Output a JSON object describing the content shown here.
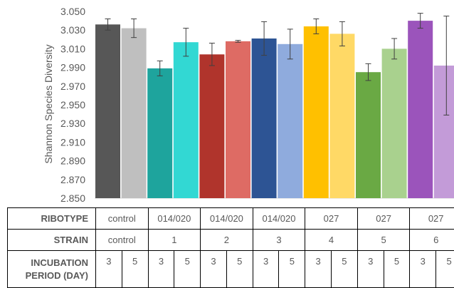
{
  "chart_data": {
    "type": "bar",
    "ylabel": "Shannon Species Diversity",
    "ylim": [
      2.85,
      3.05
    ],
    "yticks": [
      "3.050",
      "3.030",
      "3.010",
      "2.990",
      "2.970",
      "2.950",
      "2.930",
      "2.910",
      "2.890",
      "2.870",
      "2.850"
    ],
    "yticks_values": [
      3.05,
      3.03,
      3.01,
      2.99,
      2.97,
      2.95,
      2.93,
      2.91,
      2.89,
      2.87,
      2.85
    ],
    "bars": [
      {
        "value": 3.036,
        "error": 0.006,
        "color": "#575757"
      },
      {
        "value": 3.032,
        "error": 0.01,
        "color": "#bfbfbf"
      },
      {
        "value": 2.989,
        "error": 0.008,
        "color": "#1ea49d"
      },
      {
        "value": 3.017,
        "error": 0.015,
        "color": "#32d8d3"
      },
      {
        "value": 3.004,
        "error": 0.012,
        "color": "#b0342c"
      },
      {
        "value": 3.018,
        "error": 0.001,
        "color": "#de6b64"
      },
      {
        "value": 3.021,
        "error": 0.018,
        "color": "#2d5494"
      },
      {
        "value": 3.015,
        "error": 0.016,
        "color": "#8fabdd"
      },
      {
        "value": 3.034,
        "error": 0.008,
        "color": "#ffc000"
      },
      {
        "value": 3.026,
        "error": 0.013,
        "color": "#ffd966"
      },
      {
        "value": 2.985,
        "error": 0.009,
        "color": "#6aa944"
      },
      {
        "value": 3.01,
        "error": 0.011,
        "color": "#a9d18e"
      },
      {
        "value": 3.04,
        "error": 0.008,
        "color": "#9b54bb"
      },
      {
        "value": 2.992,
        "error": 0.053,
        "color": "#c39bd8"
      }
    ]
  },
  "table": {
    "ribotype_label": "RIBOTYPE",
    "strain_label": "STRAIN",
    "incubation_label_1": "INCUBATION",
    "incubation_label_2": "PERIOD (DAY)",
    "ribotypes": [
      "control",
      "014/020",
      "014/020",
      "014/020",
      "027",
      "027",
      "027"
    ],
    "strains": [
      "control",
      "1",
      "2",
      "3",
      "4",
      "5",
      "6"
    ],
    "incubation": [
      "3",
      "5",
      "3",
      "5",
      "3",
      "5",
      "3",
      "5",
      "3",
      "5",
      "3",
      "5",
      "3",
      "5"
    ]
  }
}
